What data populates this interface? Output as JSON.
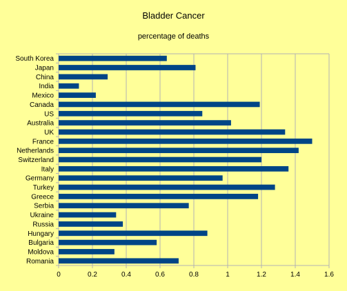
{
  "chart_data": {
    "type": "bar",
    "orientation": "horizontal",
    "title": "Bladder Cancer",
    "subtitle": "percentage of deaths",
    "xlabel": "",
    "ylabel": "",
    "xlim": [
      0,
      1.6
    ],
    "x_ticks": [
      "0",
      "0.2",
      "0.4",
      "0.6",
      "0.8",
      "1",
      "1.2",
      "1.4",
      "1.6"
    ],
    "x_tick_values": [
      0,
      0.2,
      0.4,
      0.6,
      0.8,
      1.0,
      1.2,
      1.4,
      1.6
    ],
    "grid": "vertical",
    "legend": "none",
    "bar_color": "#004586",
    "background_color": "#ffff99",
    "grid_color": "#b3b3b3",
    "categories": [
      "South Korea",
      "Japan",
      "China",
      "India",
      "Mexico",
      "Canada",
      "US",
      "Australia",
      "UK",
      "France",
      "Netherlands",
      "Switzerland",
      "Italy",
      "Germany",
      "Turkey",
      "Greece",
      "Serbia",
      "Ukraine",
      "Russia",
      "Hungary",
      "Bulgaria",
      "Moldova",
      "Romania"
    ],
    "values": [
      0.64,
      0.81,
      0.29,
      0.12,
      0.22,
      1.19,
      0.85,
      1.02,
      1.34,
      1.5,
      1.42,
      1.2,
      1.36,
      0.97,
      1.28,
      1.18,
      0.77,
      0.34,
      0.38,
      0.88,
      0.58,
      0.33,
      0.71
    ]
  }
}
